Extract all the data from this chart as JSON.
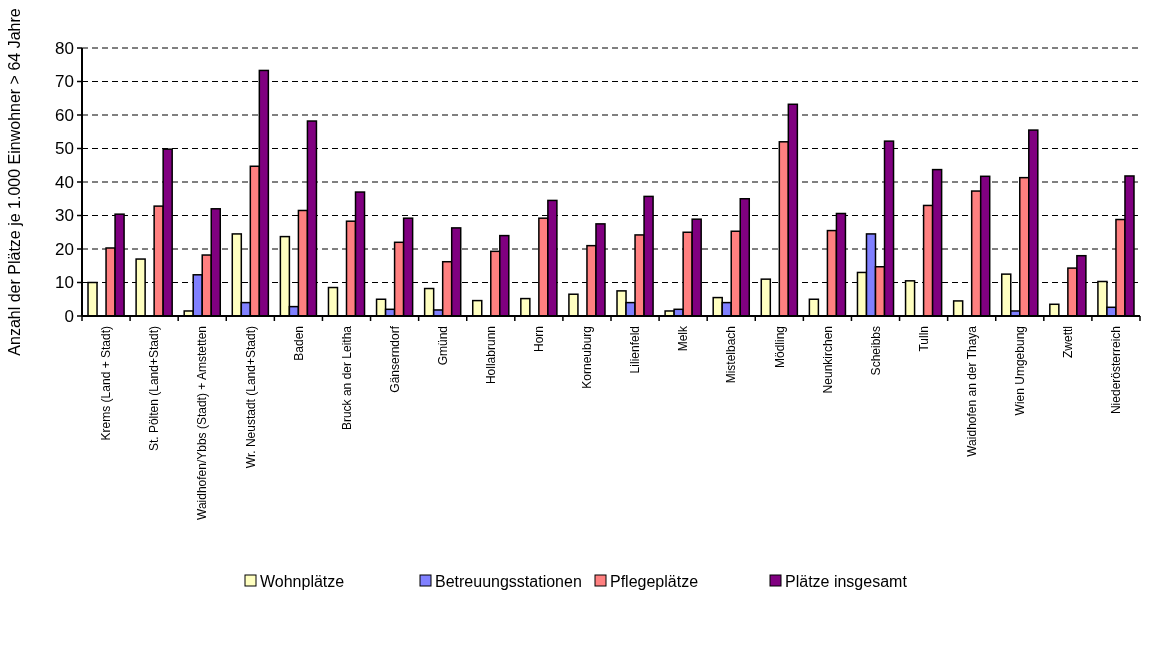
{
  "chart_data": {
    "type": "bar",
    "ylabel": "Anzahl der Plätze je 1.000 Einwohner > 64 Jahre",
    "categories": [
      "Krems (Land + Stadt)",
      "St. Pölten (Land+Stadt)",
      "Waidhofen/Ybbs (Stadt) + Amstetten",
      "Wr. Neustadt (Land+Stadt)",
      "Baden",
      "Bruck an der Leitha",
      "Gänserndorf",
      "Gmünd",
      "Hollabrunn",
      "Horn",
      "Korneuburg",
      "Lilienfeld",
      "Melk",
      "Mistelbach",
      "Mödling",
      "Neunkirchen",
      "Scheibbs",
      "Tulln",
      "Waidhofen an der Thaya",
      "Wien Umgebung",
      "Zwettl",
      "Niederösterreich"
    ],
    "series": [
      {
        "name": "Wohnplätze",
        "color": "#ffffc0",
        "values": [
          10,
          17,
          1.5,
          24.5,
          23.7,
          8.5,
          5,
          8.2,
          4.6,
          5.2,
          6.5,
          7.5,
          1.5,
          5.5,
          11,
          5,
          13,
          10.5,
          4.5,
          12.5,
          3.5,
          10.3
        ]
      },
      {
        "name": "Betreuungsstationen",
        "color": "#8080ff",
        "values": [
          null,
          null,
          12.3,
          4,
          2.8,
          null,
          2,
          1.8,
          null,
          null,
          null,
          4,
          2,
          4,
          null,
          null,
          24.5,
          null,
          null,
          1.5,
          null,
          2.6
        ]
      },
      {
        "name": "Pflegeplätze",
        "color": "#ff8080",
        "values": [
          20.3,
          32.8,
          18.2,
          44.7,
          31.5,
          28.3,
          22,
          16.2,
          19.3,
          29.2,
          21,
          24.2,
          25,
          25.3,
          52,
          25.5,
          14.7,
          33,
          37.3,
          41.3,
          14.3,
          28.8
        ]
      },
      {
        "name": "Plätze insgesamt",
        "color": "#800080",
        "values": [
          30.4,
          49.8,
          32,
          73.3,
          58.2,
          37,
          29.2,
          26.3,
          24,
          34.5,
          27.5,
          35.7,
          28.9,
          35,
          63.2,
          30.6,
          52.2,
          43.7,
          41.7,
          55.5,
          18,
          41.8
        ]
      }
    ],
    "ylim": [
      0,
      80
    ],
    "yticks": [
      0,
      10,
      20,
      30,
      40,
      50,
      60,
      70,
      80
    ],
    "grid": "y",
    "legend": "bottom"
  }
}
